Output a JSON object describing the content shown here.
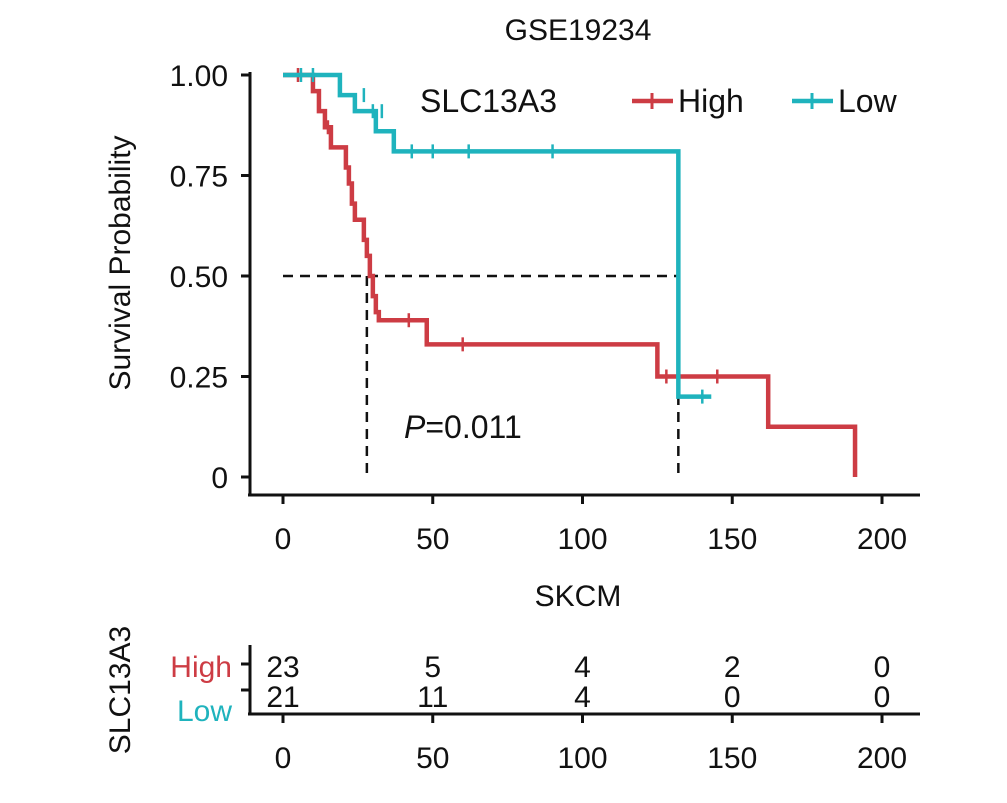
{
  "chart_data": {
    "type": "line",
    "subtype": "kaplan-meier",
    "title": "GSE19234",
    "ylabel": "Survival Probability",
    "xlabel": "",
    "xlim": [
      0,
      200
    ],
    "ylim": [
      0,
      1
    ],
    "x_ticks": [
      "0",
      "50",
      "100",
      "150",
      "200"
    ],
    "y_ticks": [
      "0",
      "0.25",
      "0.50",
      "0.75",
      "1.00"
    ],
    "legend": {
      "title": "SLC13A3",
      "position": "top-right",
      "entries": [
        "High",
        "Low"
      ]
    },
    "annotation": {
      "p_label": "P",
      "p_value": "=0.011"
    },
    "median_lines": {
      "y": 0.5,
      "x": [
        28,
        132
      ]
    },
    "colors": {
      "High": "#cd3c44",
      "Low": "#1fb3bd"
    },
    "series": [
      {
        "name": "High",
        "steps": [
          [
            0,
            1.0
          ],
          [
            10,
            0.96
          ],
          [
            12,
            0.91
          ],
          [
            14,
            0.87
          ],
          [
            16,
            0.82
          ],
          [
            21,
            0.77
          ],
          [
            22,
            0.73
          ],
          [
            23,
            0.68
          ],
          [
            24,
            0.64
          ],
          [
            27,
            0.59
          ],
          [
            28,
            0.55
          ],
          [
            29,
            0.5
          ],
          [
            30,
            0.45
          ],
          [
            31,
            0.41
          ],
          [
            32,
            0.39
          ],
          [
            48,
            0.33
          ],
          [
            125,
            0.25
          ],
          [
            162,
            0.125
          ],
          [
            191,
            0.0
          ]
        ],
        "end_x": 191,
        "censored": [
          [
            5,
            1.0
          ],
          [
            15,
            0.87
          ],
          [
            42,
            0.39
          ],
          [
            60,
            0.33
          ],
          [
            128,
            0.25
          ],
          [
            145,
            0.25
          ]
        ]
      },
      {
        "name": "Low",
        "steps": [
          [
            0,
            1.0
          ],
          [
            19,
            0.95
          ],
          [
            24,
            0.91
          ],
          [
            31,
            0.86
          ],
          [
            37,
            0.81
          ],
          [
            132,
            0.2
          ]
        ],
        "end_x": 143,
        "censored": [
          [
            6,
            1.0
          ],
          [
            10,
            1.0
          ],
          [
            27,
            0.95
          ],
          [
            30,
            0.91
          ],
          [
            33,
            0.91
          ],
          [
            43,
            0.81
          ],
          [
            50,
            0.81
          ],
          [
            62,
            0.81
          ],
          [
            90,
            0.81
          ],
          [
            140,
            0.2
          ]
        ]
      }
    ]
  },
  "risk_table": {
    "title": "SKCM",
    "ylabel": "SLC13A3",
    "x": [
      0,
      50,
      100,
      150,
      200
    ],
    "x_ticks": [
      "0",
      "50",
      "100",
      "150",
      "200"
    ],
    "groups": [
      {
        "name": "High",
        "counts": [
          "23",
          "5",
          "4",
          "2",
          "0"
        ]
      },
      {
        "name": "Low",
        "counts": [
          "21",
          "11",
          "4",
          "0",
          "0"
        ]
      }
    ]
  }
}
